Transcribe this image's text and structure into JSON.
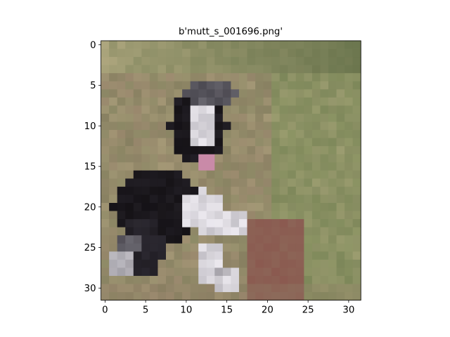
{
  "figure": {
    "title": "b'mutt_s_001696.png'"
  },
  "axes": {
    "x_ticks": [
      "0",
      "5",
      "10",
      "15",
      "20",
      "25",
      "30"
    ],
    "y_ticks": [
      "0",
      "5",
      "10",
      "15",
      "20",
      "25",
      "30"
    ]
  },
  "image": {
    "subject": "dog-photo",
    "pixel_grid": [
      32,
      32
    ],
    "palette": {
      "background": "#ffffff",
      "frame": "#000000",
      "grass_light": "#a8a27a",
      "grass_green": "#7f8c5a",
      "grass_dark": "#5f6d45",
      "dirt": "#8e7a64",
      "dog_black": "#151216",
      "dog_dark": "#2b2830",
      "dog_grey": "#6a6870",
      "dog_white": "#ece9ef",
      "tongue": "#c98aa8",
      "reddish": "#8b5a50"
    }
  }
}
